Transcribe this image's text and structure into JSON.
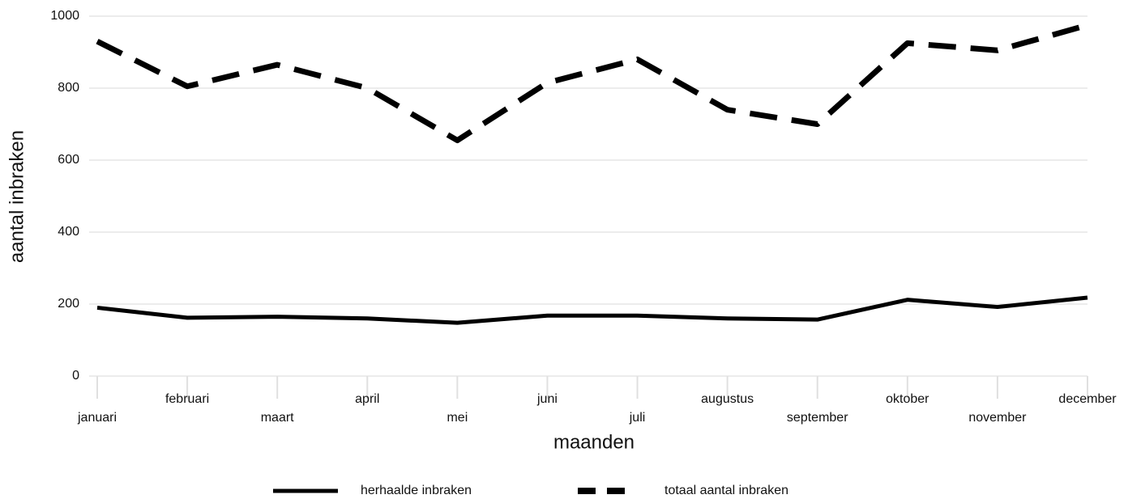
{
  "chart_data": {
    "type": "line",
    "x_label": "maanden",
    "y_label": "aantal inbraken",
    "categories": [
      "januari",
      "februari",
      "maart",
      "april",
      "mei",
      "juni",
      "juli",
      "augustus",
      "september",
      "oktober",
      "november",
      "december"
    ],
    "series": [
      {
        "name": "herhaalde inbraken",
        "color": "#000000",
        "dashed": false,
        "values": [
          190,
          162,
          165,
          160,
          148,
          168,
          168,
          160,
          157,
          212,
          192,
          218
        ]
      },
      {
        "name": "totaal aantal inbraken",
        "color": "#000000",
        "dashed": true,
        "values": [
          930,
          805,
          865,
          800,
          655,
          815,
          880,
          740,
          700,
          925,
          905,
          975
        ]
      }
    ],
    "ylim": [
      0,
      1000
    ],
    "yticks": [
      0,
      200,
      400,
      600,
      800,
      1000
    ],
    "grid": true,
    "legend": "bottom"
  }
}
